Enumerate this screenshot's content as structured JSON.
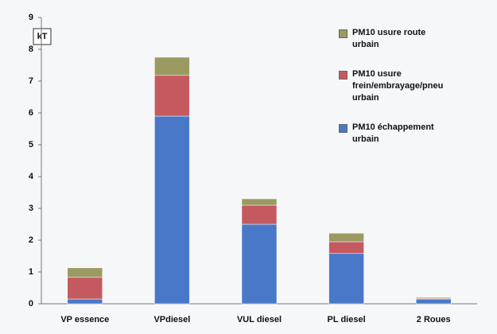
{
  "chart_data": {
    "type": "stacked_bar",
    "y_label": "kT",
    "categories": [
      "VP essence",
      "VPdiesel",
      "VUL diesel",
      "PL diesel",
      "2 Roues"
    ],
    "series": [
      {
        "name": "PM10 échappement urbain",
        "color": "#4a78c8",
        "values": [
          0.15,
          5.9,
          2.5,
          1.58,
          0.15
        ]
      },
      {
        "name": "PM10 usure frein/embrayage/pneu urbain",
        "color": "#c45a60",
        "values": [
          0.68,
          1.28,
          0.6,
          0.37,
          0.02
        ]
      },
      {
        "name": "PM10 usure route urbain",
        "color": "#9b9a62",
        "values": [
          0.3,
          0.57,
          0.2,
          0.27,
          0.03
        ]
      }
    ],
    "ylim": [
      0,
      9
    ],
    "yticks": [
      0,
      1,
      2,
      3,
      4,
      5,
      6,
      7,
      8,
      9
    ],
    "grid": false
  }
}
